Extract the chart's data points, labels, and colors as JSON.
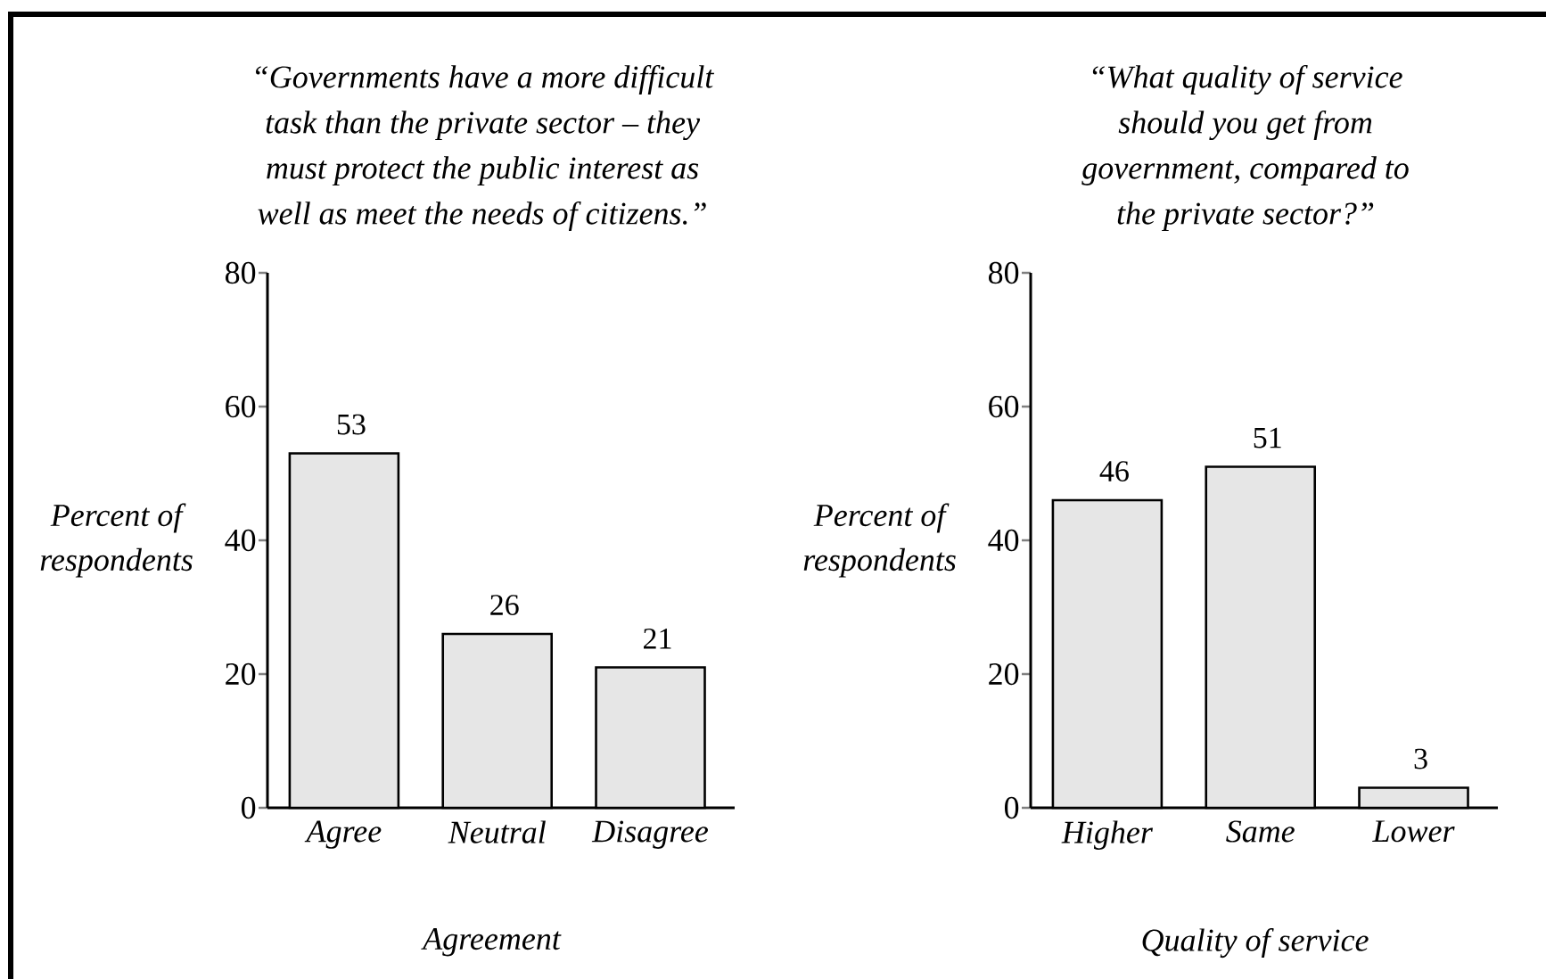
{
  "chart_data": [
    {
      "type": "bar",
      "title": "“Governments have a more difficult task than the private sector – they must protect the public interest as well as meet the needs of citizens.”",
      "xlabel": "Agreement",
      "ylabel": "Percent of respondents",
      "categories": [
        "Agree",
        "Neutral",
        "Disagree"
      ],
      "values": [
        53,
        26,
        21
      ],
      "color": "#e6e6e6",
      "ylim": [
        0,
        80
      ],
      "yticks": [
        0,
        20,
        40,
        60,
        80
      ],
      "data_labels": true
    },
    {
      "type": "bar",
      "title": "“What quality of service should you get from government, compared to the private sector?”",
      "xlabel": "Quality of service",
      "ylabel": "Percent of respondents",
      "categories": [
        "Higher",
        "Same",
        "Lower"
      ],
      "values": [
        46,
        51,
        3
      ],
      "color": "#e6e6e6",
      "ylim": [
        0,
        80
      ],
      "yticks": [
        0,
        20,
        40,
        60,
        80
      ],
      "data_labels": true
    }
  ]
}
